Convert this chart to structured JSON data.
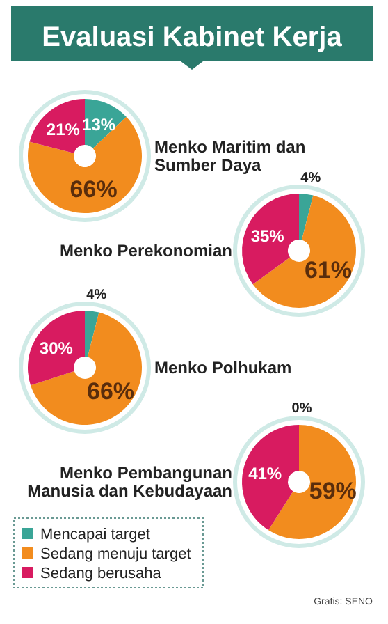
{
  "chart_data": [
    {
      "type": "other",
      "title": "Evaluasi Kabinet Kerja"
    },
    {
      "type": "donut",
      "title": "Menko Maritim dan Sumber Daya",
      "categories": [
        null,
        null,
        null
      ],
      "values": [
        13,
        66,
        21
      ],
      "value_labels": [
        "13%",
        "66%",
        "21%"
      ],
      "colors": [
        "#3aa597",
        "#f28c1e",
        "#d81b60"
      ]
    },
    {
      "type": "donut",
      "title": "Menko Perekonomian",
      "categories": [
        null,
        null,
        null
      ],
      "values": [
        4,
        61,
        35
      ],
      "value_labels": [
        "4%",
        "61%",
        "35%"
      ],
      "colors": [
        "#3aa597",
        "#f28c1e",
        "#d81b60"
      ]
    },
    {
      "type": "donut",
      "title": "Menko Polhukam",
      "categories": [
        null,
        null,
        null
      ],
      "values": [
        4,
        66,
        30
      ],
      "value_labels": [
        "4%",
        "66%",
        "30%"
      ],
      "colors": [
        "#3aa597",
        "#f28c1e",
        "#d81b60"
      ]
    },
    {
      "type": "donut",
      "title": "Menko Pembangunan Manusia dan Kebudayaan",
      "categories": [
        "Mencapai target",
        "Sedang menuju target",
        "Sedang berusaha"
      ],
      "values": [
        0,
        59,
        41
      ],
      "value_labels": [
        "0%",
        "59%",
        "41%"
      ],
      "colors": [
        "#3aa597",
        "#f28c1e",
        "#d81b60"
      ],
      "legend": "bottom left",
      "annotations": [
        "Grafis: SENO"
      ]
    }
  ]
}
